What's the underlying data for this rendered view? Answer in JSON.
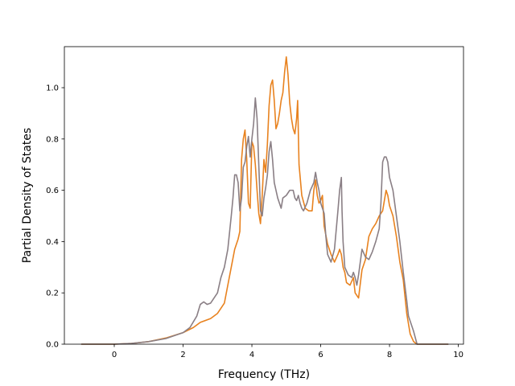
{
  "chart_data": {
    "type": "line",
    "title": "",
    "xlabel": "Frequency (THz)",
    "ylabel": "Partial Density of States",
    "xlim": [
      -1.45,
      10.15
    ],
    "ylim": [
      0.0,
      1.16
    ],
    "xticks": [
      0,
      2,
      4,
      6,
      8,
      10
    ],
    "yticks": [
      0.0,
      0.2,
      0.4,
      0.6,
      0.8,
      1.0
    ],
    "xtick_labels": [
      "0",
      "2",
      "4",
      "6",
      "8",
      "10"
    ],
    "ytick_labels": [
      "0.0",
      "0.2",
      "0.4",
      "0.6",
      "0.8",
      "1.0"
    ],
    "grid": false,
    "legend": "none",
    "series": [
      {
        "color": "#e8821f",
        "points": [
          [
            -0.95,
            0.0
          ],
          [
            0.0,
            0.0
          ],
          [
            0.5,
            0.003
          ],
          [
            1.0,
            0.01
          ],
          [
            1.5,
            0.024
          ],
          [
            2.0,
            0.045
          ],
          [
            2.3,
            0.065
          ],
          [
            2.5,
            0.085
          ],
          [
            2.8,
            0.1
          ],
          [
            3.0,
            0.12
          ],
          [
            3.2,
            0.16
          ],
          [
            3.3,
            0.23
          ],
          [
            3.4,
            0.3
          ],
          [
            3.5,
            0.37
          ],
          [
            3.6,
            0.41
          ],
          [
            3.65,
            0.44
          ],
          [
            3.7,
            0.72
          ],
          [
            3.75,
            0.8
          ],
          [
            3.8,
            0.835
          ],
          [
            3.85,
            0.72
          ],
          [
            3.9,
            0.55
          ],
          [
            3.95,
            0.53
          ],
          [
            4.0,
            0.79
          ],
          [
            4.05,
            0.77
          ],
          [
            4.1,
            0.7
          ],
          [
            4.15,
            0.6
          ],
          [
            4.2,
            0.51
          ],
          [
            4.25,
            0.47
          ],
          [
            4.3,
            0.58
          ],
          [
            4.35,
            0.72
          ],
          [
            4.4,
            0.67
          ],
          [
            4.45,
            0.78
          ],
          [
            4.5,
            0.93
          ],
          [
            4.55,
            1.01
          ],
          [
            4.6,
            1.03
          ],
          [
            4.65,
            0.95
          ],
          [
            4.7,
            0.84
          ],
          [
            4.75,
            0.86
          ],
          [
            4.8,
            0.9
          ],
          [
            4.85,
            0.95
          ],
          [
            4.9,
            0.98
          ],
          [
            4.95,
            1.06
          ],
          [
            5.0,
            1.12
          ],
          [
            5.05,
            1.05
          ],
          [
            5.1,
            0.94
          ],
          [
            5.15,
            0.88
          ],
          [
            5.2,
            0.84
          ],
          [
            5.25,
            0.82
          ],
          [
            5.3,
            0.88
          ],
          [
            5.33,
            0.95
          ],
          [
            5.37,
            0.7
          ],
          [
            5.45,
            0.58
          ],
          [
            5.55,
            0.53
          ],
          [
            5.65,
            0.52
          ],
          [
            5.75,
            0.52
          ],
          [
            5.8,
            0.6
          ],
          [
            5.85,
            0.64
          ],
          [
            5.9,
            0.58
          ],
          [
            5.95,
            0.55
          ],
          [
            6.0,
            0.56
          ],
          [
            6.05,
            0.58
          ],
          [
            6.1,
            0.46
          ],
          [
            6.2,
            0.39
          ],
          [
            6.3,
            0.35
          ],
          [
            6.4,
            0.32
          ],
          [
            6.5,
            0.35
          ],
          [
            6.55,
            0.37
          ],
          [
            6.6,
            0.35
          ],
          [
            6.65,
            0.3
          ],
          [
            6.7,
            0.28
          ],
          [
            6.75,
            0.24
          ],
          [
            6.85,
            0.23
          ],
          [
            6.95,
            0.26
          ],
          [
            7.0,
            0.2
          ],
          [
            7.1,
            0.18
          ],
          [
            7.2,
            0.29
          ],
          [
            7.3,
            0.33
          ],
          [
            7.4,
            0.42
          ],
          [
            7.5,
            0.45
          ],
          [
            7.6,
            0.47
          ],
          [
            7.7,
            0.5
          ],
          [
            7.8,
            0.52
          ],
          [
            7.9,
            0.6
          ],
          [
            7.95,
            0.58
          ],
          [
            8.0,
            0.54
          ],
          [
            8.1,
            0.5
          ],
          [
            8.2,
            0.42
          ],
          [
            8.3,
            0.32
          ],
          [
            8.4,
            0.25
          ],
          [
            8.5,
            0.12
          ],
          [
            8.6,
            0.04
          ],
          [
            8.7,
            0.01
          ],
          [
            8.8,
            0.0
          ],
          [
            9.7,
            0.0
          ]
        ]
      },
      {
        "color": "#8a7f85",
        "points": [
          [
            -0.95,
            0.0
          ],
          [
            0.0,
            0.0
          ],
          [
            0.5,
            0.003
          ],
          [
            1.0,
            0.01
          ],
          [
            1.5,
            0.022
          ],
          [
            2.0,
            0.045
          ],
          [
            2.2,
            0.065
          ],
          [
            2.4,
            0.11
          ],
          [
            2.5,
            0.155
          ],
          [
            2.6,
            0.165
          ],
          [
            2.7,
            0.155
          ],
          [
            2.8,
            0.16
          ],
          [
            2.9,
            0.18
          ],
          [
            3.0,
            0.2
          ],
          [
            3.1,
            0.26
          ],
          [
            3.2,
            0.3
          ],
          [
            3.3,
            0.37
          ],
          [
            3.4,
            0.5
          ],
          [
            3.45,
            0.57
          ],
          [
            3.5,
            0.66
          ],
          [
            3.55,
            0.66
          ],
          [
            3.6,
            0.63
          ],
          [
            3.65,
            0.52
          ],
          [
            3.7,
            0.57
          ],
          [
            3.75,
            0.69
          ],
          [
            3.8,
            0.71
          ],
          [
            3.85,
            0.77
          ],
          [
            3.9,
            0.81
          ],
          [
            3.95,
            0.73
          ],
          [
            4.0,
            0.8
          ],
          [
            4.05,
            0.86
          ],
          [
            4.1,
            0.96
          ],
          [
            4.15,
            0.88
          ],
          [
            4.2,
            0.7
          ],
          [
            4.25,
            0.52
          ],
          [
            4.3,
            0.5
          ],
          [
            4.35,
            0.57
          ],
          [
            4.4,
            0.61
          ],
          [
            4.45,
            0.66
          ],
          [
            4.5,
            0.75
          ],
          [
            4.55,
            0.79
          ],
          [
            4.6,
            0.72
          ],
          [
            4.65,
            0.63
          ],
          [
            4.7,
            0.6
          ],
          [
            4.75,
            0.57
          ],
          [
            4.8,
            0.55
          ],
          [
            4.85,
            0.53
          ],
          [
            4.9,
            0.57
          ],
          [
            5.0,
            0.58
          ],
          [
            5.1,
            0.6
          ],
          [
            5.2,
            0.6
          ],
          [
            5.25,
            0.57
          ],
          [
            5.3,
            0.56
          ],
          [
            5.35,
            0.58
          ],
          [
            5.4,
            0.55
          ],
          [
            5.45,
            0.53
          ],
          [
            5.5,
            0.52
          ],
          [
            5.6,
            0.55
          ],
          [
            5.7,
            0.6
          ],
          [
            5.8,
            0.63
          ],
          [
            5.85,
            0.67
          ],
          [
            5.9,
            0.63
          ],
          [
            5.95,
            0.6
          ],
          [
            6.0,
            0.55
          ],
          [
            6.1,
            0.51
          ],
          [
            6.15,
            0.42
          ],
          [
            6.2,
            0.35
          ],
          [
            6.3,
            0.32
          ],
          [
            6.4,
            0.37
          ],
          [
            6.5,
            0.52
          ],
          [
            6.55,
            0.6
          ],
          [
            6.6,
            0.65
          ],
          [
            6.62,
            0.52
          ],
          [
            6.65,
            0.4
          ],
          [
            6.7,
            0.3
          ],
          [
            6.8,
            0.27
          ],
          [
            6.9,
            0.26
          ],
          [
            6.95,
            0.28
          ],
          [
            7.0,
            0.26
          ],
          [
            7.05,
            0.23
          ],
          [
            7.1,
            0.27
          ],
          [
            7.2,
            0.37
          ],
          [
            7.3,
            0.34
          ],
          [
            7.4,
            0.33
          ],
          [
            7.5,
            0.36
          ],
          [
            7.6,
            0.4
          ],
          [
            7.7,
            0.45
          ],
          [
            7.75,
            0.55
          ],
          [
            7.8,
            0.71
          ],
          [
            7.85,
            0.73
          ],
          [
            7.9,
            0.73
          ],
          [
            7.95,
            0.71
          ],
          [
            8.0,
            0.65
          ],
          [
            8.1,
            0.6
          ],
          [
            8.2,
            0.5
          ],
          [
            8.3,
            0.4
          ],
          [
            8.4,
            0.28
          ],
          [
            8.5,
            0.17
          ],
          [
            8.55,
            0.11
          ],
          [
            8.6,
            0.09
          ],
          [
            8.7,
            0.05
          ],
          [
            8.8,
            0.0
          ],
          [
            9.7,
            0.0
          ]
        ]
      }
    ]
  }
}
